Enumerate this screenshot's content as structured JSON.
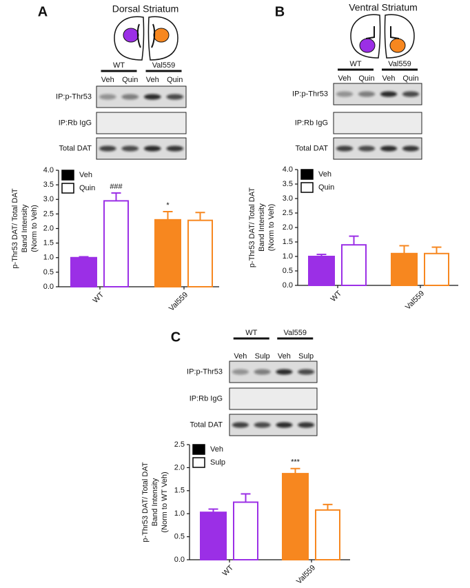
{
  "chart_data": [
    {
      "type": "bar",
      "panel": "A",
      "title": "Dorsal Striatum",
      "blot": {
        "groups": [
          "WT",
          "Val559"
        ],
        "lanes": [
          "Veh",
          "Quin",
          "Veh",
          "Quin"
        ],
        "rows": [
          "IP:p-Thr53",
          "IP:Rb IgG",
          "Total DAT"
        ]
      },
      "ylabel": [
        "p-Thr53 DAT/ Total DAT",
        "Band Intensity",
        "(Norm to Veh)"
      ],
      "categories": [
        "WT",
        "Val559"
      ],
      "category_colors": [
        "#9b2fe6",
        "#f7871f"
      ],
      "series": [
        {
          "name": "Veh",
          "fill": true,
          "values": [
            1.0,
            2.3
          ],
          "errors": [
            0.03,
            0.28
          ],
          "annotations": [
            null,
            "*"
          ]
        },
        {
          "name": "Quin",
          "fill": false,
          "values": [
            2.95,
            2.28
          ],
          "errors": [
            0.27,
            0.27
          ],
          "annotations": [
            "###",
            null
          ]
        }
      ],
      "ylim": [
        0,
        4
      ],
      "yticks": [
        {
          "value": 0,
          "label": "0.0"
        },
        {
          "value": 0.5,
          "label": "0.5"
        },
        {
          "value": 1,
          "label": "1.0"
        },
        {
          "value": 1.5,
          "label": "1.5"
        },
        {
          "value": 2,
          "label": "2.0"
        },
        {
          "value": 2.5,
          "label": "2.5"
        },
        {
          "value": 3,
          "label": "3.0"
        },
        {
          "value": 3.5,
          "label": "3.5"
        },
        {
          "value": 4,
          "label": "4.0"
        }
      ]
    },
    {
      "type": "bar",
      "panel": "B",
      "title": "Ventral Striatum",
      "blot": {
        "groups": [
          "WT",
          "Val559"
        ],
        "lanes": [
          "Veh",
          "Quin",
          "Veh",
          "Quin"
        ],
        "rows": [
          "IP:p-Thr53",
          "IP:Rb IgG",
          "Total DAT"
        ]
      },
      "ylabel": [
        "p-Thr53 DAT/ Total DAT",
        "Band Intensity",
        "(Norm to Veh)"
      ],
      "categories": [
        "WT",
        "Val559"
      ],
      "category_colors": [
        "#9b2fe6",
        "#f7871f"
      ],
      "series": [
        {
          "name": "Veh",
          "fill": true,
          "values": [
            1.0,
            1.1
          ],
          "errors": [
            0.07,
            0.27
          ],
          "annotations": [
            null,
            null
          ]
        },
        {
          "name": "Quin",
          "fill": false,
          "values": [
            1.4,
            1.1
          ],
          "errors": [
            0.3,
            0.22
          ],
          "annotations": [
            null,
            null
          ]
        }
      ],
      "ylim": [
        0,
        4
      ],
      "yticks": [
        {
          "value": 0,
          "label": "0.0"
        },
        {
          "value": 0.5,
          "label": "0.5"
        },
        {
          "value": 1,
          "label": "1.0"
        },
        {
          "value": 1.5,
          "label": "1.5"
        },
        {
          "value": 2,
          "label": "2.0"
        },
        {
          "value": 2.5,
          "label": "2.5"
        },
        {
          "value": 3,
          "label": "3.0"
        },
        {
          "value": 3.5,
          "label": "3.5"
        },
        {
          "value": 4,
          "label": "4.0"
        }
      ]
    },
    {
      "type": "bar",
      "panel": "C",
      "blot": {
        "groups": [
          "WT",
          "Val559"
        ],
        "lanes": [
          "Veh",
          "Sulp",
          "Veh",
          "Sulp"
        ],
        "rows": [
          "IP:p-Thr53",
          "IP:Rb IgG",
          "Total DAT"
        ]
      },
      "ylabel": [
        "p-Thr53 DAT/ Total DAT",
        "Band Intensity",
        "(Norm to WT Veh)"
      ],
      "categories": [
        "WT",
        "Val559"
      ],
      "category_colors": [
        "#9b2fe6",
        "#f7871f"
      ],
      "series": [
        {
          "name": "Veh",
          "fill": true,
          "values": [
            1.03,
            1.87
          ],
          "errors": [
            0.07,
            0.11
          ],
          "annotations": [
            null,
            "***"
          ]
        },
        {
          "name": "Sulp",
          "fill": false,
          "values": [
            1.25,
            1.08
          ],
          "errors": [
            0.18,
            0.12
          ],
          "annotations": [
            null,
            null
          ]
        }
      ],
      "ylim": [
        0,
        2.5
      ],
      "yticks": [
        {
          "value": 0,
          "label": "0.0"
        },
        {
          "value": 0.5,
          "label": "0.5"
        },
        {
          "value": 1,
          "label": "1.0"
        },
        {
          "value": 1.5,
          "label": "1.5"
        },
        {
          "value": 2,
          "label": "2.0"
        },
        {
          "value": 2.5,
          "label": "2.5"
        }
      ]
    }
  ]
}
